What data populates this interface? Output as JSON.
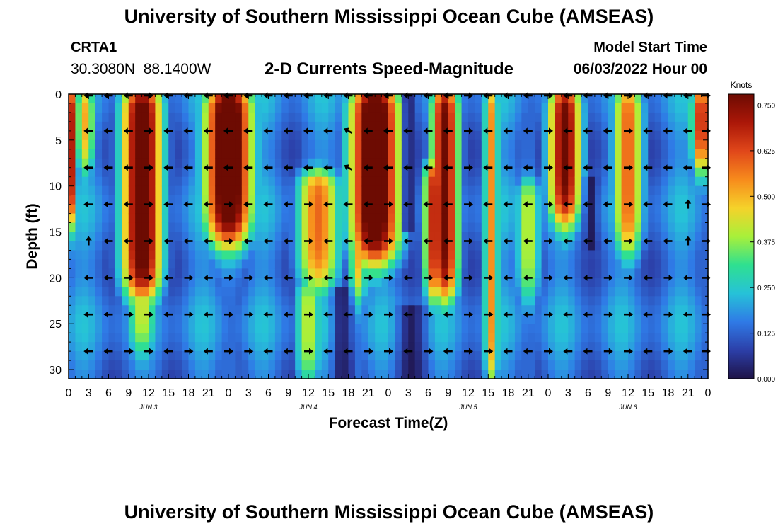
{
  "header": {
    "title": "University of Southern Mississippi Ocean Cube (AMSEAS)",
    "station": "CRTA1",
    "coords": "30.3080N  88.1400W",
    "subtitle": "2-D Currents Speed-Magnitude",
    "model_label": "Model Start Time",
    "model_value": "06/03/2022 Hour 00"
  },
  "footer": {
    "title": "University of Southern Mississippi Ocean Cube (AMSEAS)"
  },
  "chart_data": {
    "type": "heatmap",
    "title": "2-D Currents Speed-Magnitude",
    "xlabel": "Forecast Time(Z)",
    "ylabel": "Depth (ft)",
    "xlim": [
      0,
      96
    ],
    "ylim": [
      0,
      31
    ],
    "x_tick_values": [
      0,
      3,
      6,
      9,
      12,
      15,
      18,
      21,
      24,
      27,
      30,
      33,
      36,
      39,
      42,
      45,
      48,
      51,
      54,
      57,
      60,
      63,
      66,
      69,
      72,
      75,
      78,
      81,
      84,
      87,
      90,
      93,
      96
    ],
    "x_tick_labels": [
      "0",
      "3",
      "6",
      "9",
      "12",
      "15",
      "18",
      "21",
      "0",
      "3",
      "6",
      "9",
      "12",
      "15",
      "18",
      "21",
      "0",
      "3",
      "6",
      "9",
      "12",
      "15",
      "18",
      "21",
      "0",
      "3",
      "6",
      "9",
      "12",
      "15",
      "18",
      "21",
      "0"
    ],
    "day_labels": [
      {
        "label": "JUN 3",
        "hour": 12
      },
      {
        "label": "JUN 4",
        "hour": 36
      },
      {
        "label": "JUN 5",
        "hour": 60
      },
      {
        "label": "JUN 6",
        "hour": 84
      }
    ],
    "y_tick_values": [
      0,
      5,
      10,
      15,
      20,
      25,
      30
    ],
    "y_tick_labels": [
      "0",
      "5",
      "10",
      "15",
      "20",
      "25",
      "30"
    ],
    "colorbar": {
      "title": "Knots",
      "range": [
        0,
        0.78
      ],
      "tick_values": [
        0.0,
        0.125,
        0.25,
        0.375,
        0.5,
        0.625,
        0.75
      ],
      "tick_labels": [
        "0.000",
        "0.125",
        "0.250",
        "0.375",
        "0.500",
        "0.625",
        "0.750"
      ],
      "colors": [
        "#1e1246",
        "#2c3fa8",
        "#2f7ae6",
        "#26c2d8",
        "#2fe090",
        "#a8f03a",
        "#f5d22a",
        "#f78b1c",
        "#e0471a",
        "#ab1708",
        "#6d0b02"
      ]
    },
    "speed_features": [
      {
        "hour": 0.5,
        "width": 0.9,
        "amp": 0.55,
        "d0": 0,
        "d1": 14
      },
      {
        "hour": 2.5,
        "width": 1.6,
        "amp": 0.38,
        "d0": 0,
        "d1": 8
      },
      {
        "hour": 11,
        "width": 3.2,
        "amp": 0.72,
        "d0": 0,
        "d1": 22
      },
      {
        "hour": 11,
        "width": 2.5,
        "amp": 0.3,
        "d0": 20,
        "d1": 28
      },
      {
        "hour": 24,
        "width": 3.8,
        "amp": 0.78,
        "d0": 0,
        "d1": 16
      },
      {
        "hour": 27,
        "width": 1.5,
        "amp": 0.3,
        "d0": 0,
        "d1": 4
      },
      {
        "hour": 37.5,
        "width": 3.4,
        "amp": 0.45,
        "d0": 9,
        "d1": 21
      },
      {
        "hour": 36,
        "width": 2.2,
        "amp": 0.28,
        "d0": 21,
        "d1": 31
      },
      {
        "hour": 46,
        "width": 4.0,
        "amp": 0.78,
        "d0": 0,
        "d1": 18
      },
      {
        "hour": 43.5,
        "width": 1.5,
        "amp": 0.38,
        "d0": 6,
        "d1": 22
      },
      {
        "hour": 55,
        "width": 1.8,
        "amp": 0.58,
        "d0": 8,
        "d1": 22
      },
      {
        "hour": 56.5,
        "width": 2.2,
        "amp": 0.65,
        "d0": 0,
        "d1": 22
      },
      {
        "hour": 63.5,
        "width": 1.2,
        "amp": 0.4,
        "d0": 0,
        "d1": 31
      },
      {
        "hour": 74.5,
        "width": 2.6,
        "amp": 0.66,
        "d0": 0,
        "d1": 14
      },
      {
        "hour": 69,
        "width": 2.0,
        "amp": 0.28,
        "d0": 10,
        "d1": 22
      },
      {
        "hour": 84,
        "width": 2.4,
        "amp": 0.46,
        "d0": 0,
        "d1": 17
      },
      {
        "hour": 95,
        "width": 1.6,
        "amp": 0.58,
        "d0": 0,
        "d1": 8
      }
    ],
    "low_features": [
      {
        "hour": 51,
        "width": 0.9,
        "d0": 0,
        "d1": 14
      },
      {
        "hour": 41,
        "width": 1.2,
        "d0": 22,
        "d1": 31
      },
      {
        "hour": 51.5,
        "width": 1.8,
        "d0": 24,
        "d1": 31
      },
      {
        "hour": 78.5,
        "width": 0.8,
        "d0": 10,
        "d1": 16
      }
    ],
    "arrow_depths": [
      0,
      4,
      8,
      12,
      16,
      20,
      24,
      28
    ],
    "arrow_hours": [
      3,
      6,
      9,
      12,
      15,
      18,
      21,
      24,
      27,
      30,
      33,
      36,
      39,
      42,
      45,
      48,
      51,
      54,
      57,
      60,
      63,
      66,
      69,
      72,
      75,
      78,
      81,
      84,
      87,
      90,
      93,
      96
    ],
    "arrow_direction": "mostly west (left), some east (right) at depth; a few pointing north near 15 ft at hour 3 and 93"
  }
}
